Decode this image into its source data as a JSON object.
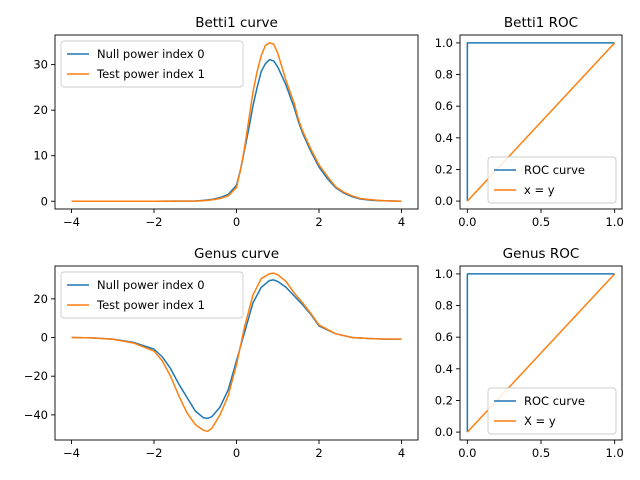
{
  "chart_data": [
    {
      "id": "betti1-curve",
      "type": "line",
      "title": "Betti1 curve",
      "xlabel": "",
      "ylabel": "",
      "xlim": [
        -4.4,
        4.4
      ],
      "ylim": [
        -1.7,
        36.5
      ],
      "xticks": [
        -4,
        -2,
        0,
        2,
        4
      ],
      "xtick_labels": [
        "−4",
        "−2",
        "0",
        "2",
        "4"
      ],
      "yticks": [
        0,
        10,
        20,
        30
      ],
      "ytick_labels": [
        "0",
        "10",
        "20",
        "30"
      ],
      "legend": "upper-left",
      "grid": false,
      "series": [
        {
          "name": "Null power index 0",
          "color": "#1f77b4",
          "x": [
            -4,
            -3,
            -2,
            -1,
            -0.8,
            -0.6,
            -0.4,
            -0.2,
            0,
            0.1,
            0.2,
            0.3,
            0.4,
            0.5,
            0.6,
            0.7,
            0.8,
            0.9,
            1.0,
            1.1,
            1.2,
            1.3,
            1.4,
            1.5,
            1.6,
            1.8,
            2.0,
            2.2,
            2.4,
            2.6,
            2.8,
            3.0,
            3.3,
            3.6,
            4
          ],
          "y": [
            0,
            0,
            0,
            0.05,
            0.2,
            0.4,
            0.8,
            1.5,
            3.5,
            7,
            11.5,
            16,
            21,
            25,
            28.5,
            30.2,
            31.1,
            30.8,
            29.5,
            27.5,
            25.5,
            23,
            20.5,
            17.5,
            15,
            11,
            7.5,
            5,
            3,
            1.8,
            1,
            0.5,
            0.2,
            0.1,
            0
          ]
        },
        {
          "name": "Test power index 1",
          "color": "#ff7f0e",
          "x": [
            -4,
            -3,
            -2,
            -1,
            -0.8,
            -0.6,
            -0.4,
            -0.2,
            0,
            0.1,
            0.2,
            0.3,
            0.4,
            0.5,
            0.6,
            0.7,
            0.8,
            0.9,
            1.0,
            1.1,
            1.2,
            1.3,
            1.4,
            1.5,
            1.6,
            1.8,
            2.0,
            2.2,
            2.4,
            2.6,
            2.8,
            3.0,
            3.3,
            3.6,
            4
          ],
          "y": [
            0,
            0,
            0,
            0.05,
            0.1,
            0.3,
            0.6,
            1.2,
            3,
            7,
            12,
            18,
            24,
            28.5,
            32,
            34.2,
            34.8,
            34.5,
            32.5,
            29.5,
            26.5,
            24,
            21.5,
            18,
            15.5,
            11.5,
            8,
            5.5,
            3.2,
            2,
            1.2,
            0.6,
            0.3,
            0.1,
            0
          ]
        }
      ]
    },
    {
      "id": "betti1-roc",
      "type": "line",
      "title": "Betti1 ROC",
      "xlabel": "",
      "ylabel": "",
      "xlim": [
        -0.05,
        1.05
      ],
      "ylim": [
        -0.05,
        1.05
      ],
      "xticks": [
        0,
        0.5,
        1
      ],
      "xtick_labels": [
        "0.0",
        "0.5",
        "1.0"
      ],
      "yticks": [
        0,
        0.2,
        0.4,
        0.6,
        0.8,
        1.0
      ],
      "ytick_labels": [
        "0.0",
        "0.2",
        "0.4",
        "0.6",
        "0.8",
        "1.0"
      ],
      "legend": "lower-right",
      "grid": false,
      "series": [
        {
          "name": "ROC curve",
          "color": "#1f77b4",
          "x": [
            0,
            0,
            1
          ],
          "y": [
            0,
            1,
            1
          ]
        },
        {
          "name": "x = y",
          "color": "#ff7f0e",
          "x": [
            0,
            1
          ],
          "y": [
            0,
            1
          ]
        }
      ]
    },
    {
      "id": "genus-curve",
      "type": "line",
      "title": "Genus curve",
      "xlabel": "",
      "ylabel": "",
      "xlim": [
        -4.4,
        4.4
      ],
      "ylim": [
        -53,
        37
      ],
      "xticks": [
        -4,
        -2,
        0,
        2,
        4
      ],
      "xtick_labels": [
        "−4",
        "−2",
        "0",
        "2",
        "4"
      ],
      "yticks": [
        -40,
        -20,
        0,
        20
      ],
      "ytick_labels": [
        "−40",
        "−20",
        "0",
        "20"
      ],
      "legend": "upper-left",
      "grid": false,
      "series": [
        {
          "name": "Null power index 0",
          "color": "#1f77b4",
          "x": [
            -4,
            -3.5,
            -3,
            -2.5,
            -2,
            -1.8,
            -1.6,
            -1.4,
            -1.2,
            -1.0,
            -0.8,
            -0.7,
            -0.6,
            -0.4,
            -0.2,
            0,
            0.2,
            0.4,
            0.6,
            0.8,
            0.9,
            1.0,
            1.2,
            1.4,
            1.6,
            1.8,
            2.0,
            2.4,
            2.8,
            3.2,
            3.6,
            4
          ],
          "y": [
            0,
            -0.2,
            -0.8,
            -2.5,
            -6,
            -10,
            -16,
            -24,
            -31,
            -38,
            -41.5,
            -41.8,
            -41,
            -36,
            -27,
            -12,
            3,
            18,
            26,
            29.5,
            29.8,
            29,
            26,
            21.5,
            17,
            12,
            6,
            2,
            0,
            -0.5,
            -0.8,
            -0.8
          ]
        },
        {
          "name": "Test power index 1",
          "color": "#ff7f0e",
          "x": [
            -4,
            -3.5,
            -3,
            -2.5,
            -2,
            -1.8,
            -1.6,
            -1.4,
            -1.2,
            -1.0,
            -0.8,
            -0.7,
            -0.6,
            -0.4,
            -0.2,
            0,
            0.2,
            0.4,
            0.6,
            0.8,
            0.9,
            1.0,
            1.2,
            1.4,
            1.6,
            1.8,
            2.0,
            2.4,
            2.8,
            3.2,
            3.6,
            4
          ],
          "y": [
            0,
            -0.2,
            -0.9,
            -2.8,
            -7,
            -12,
            -20,
            -30,
            -39,
            -45,
            -48,
            -48.5,
            -47,
            -40,
            -30,
            -14,
            6,
            22,
            30.5,
            33,
            33.3,
            32.5,
            29,
            23,
            18,
            12.5,
            6.5,
            2,
            0,
            -0.5,
            -0.8,
            -0.8
          ]
        }
      ]
    },
    {
      "id": "genus-roc",
      "type": "line",
      "title": "Genus ROC",
      "xlabel": "",
      "ylabel": "",
      "xlim": [
        -0.05,
        1.05
      ],
      "ylim": [
        -0.05,
        1.05
      ],
      "xticks": [
        0,
        0.5,
        1
      ],
      "xtick_labels": [
        "0.0",
        "0.5",
        "1.0"
      ],
      "yticks": [
        0,
        0.2,
        0.4,
        0.6,
        0.8,
        1.0
      ],
      "ytick_labels": [
        "0.0",
        "0.2",
        "0.4",
        "0.6",
        "0.8",
        "1.0"
      ],
      "legend": "lower-right",
      "grid": false,
      "series": [
        {
          "name": "ROC curve",
          "color": "#1f77b4",
          "x": [
            0,
            0,
            1
          ],
          "y": [
            0,
            1,
            1
          ]
        },
        {
          "name": "X = y",
          "color": "#ff7f0e",
          "x": [
            0,
            1
          ],
          "y": [
            0,
            1
          ]
        }
      ]
    }
  ]
}
